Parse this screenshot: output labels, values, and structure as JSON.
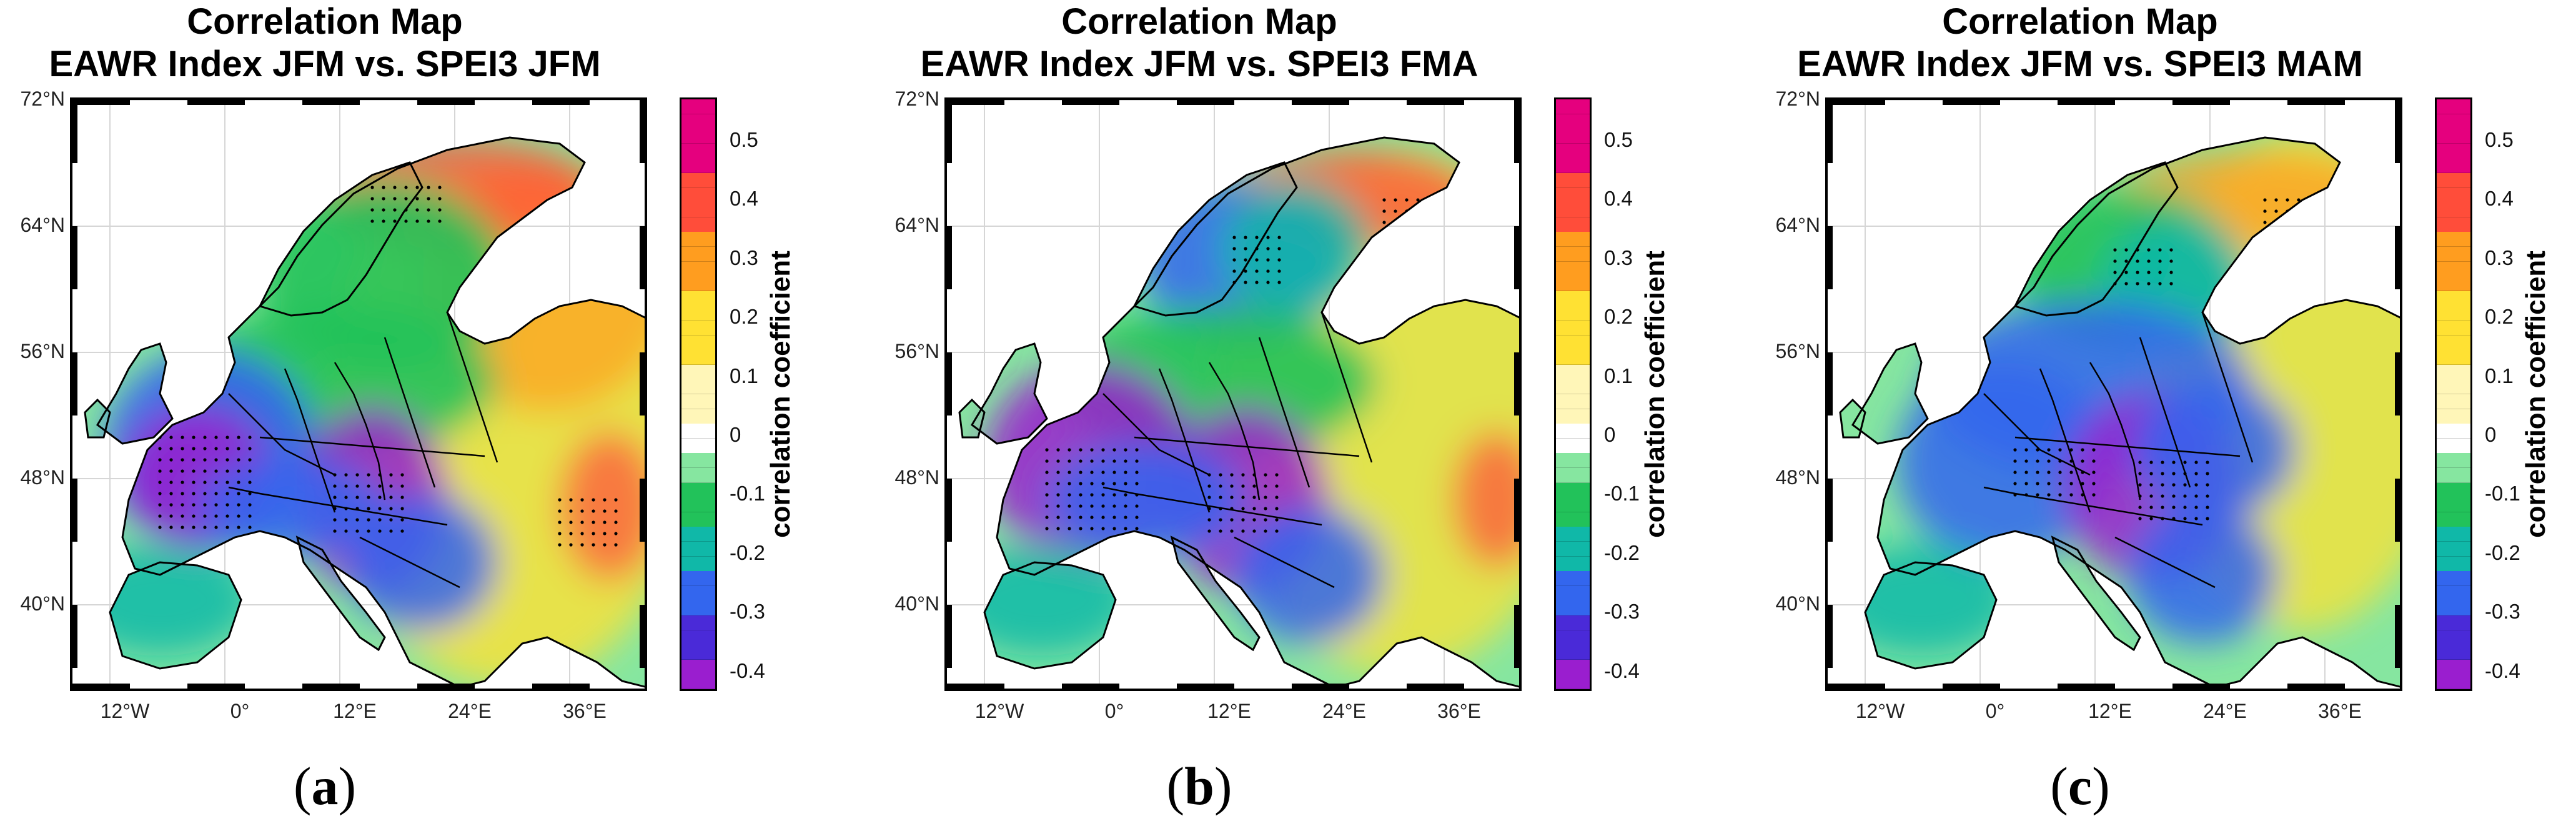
{
  "panels": [
    {
      "title_line1": "Correlation Map",
      "title_line2": "EAWR Index JFM vs. SPEI3 JFM",
      "caption_letter": "a"
    },
    {
      "title_line1": "Correlation Map",
      "title_line2": "EAWR Index JFM vs. SPEI3 FMA",
      "caption_letter": "b"
    },
    {
      "title_line1": "Correlation Map",
      "title_line2": "EAWR Index JFM vs. SPEI3 MAM",
      "caption_letter": "c"
    }
  ],
  "caption_paren_open": "(",
  "caption_paren_close": ")",
  "map_axes": {
    "lat_labels": [
      "72°N",
      "64°N",
      "56°N",
      "48°N",
      "40°N"
    ],
    "lon_labels": [
      "12°W",
      "0°",
      "12°E",
      "24°E",
      "36°E"
    ]
  },
  "colorbar": {
    "title": "correlation coefficient",
    "range": [
      -0.43,
      0.57
    ],
    "step": 0.025,
    "tick_labels": [
      "0.5",
      "0.4",
      "0.3",
      "0.2",
      "0.1",
      "0",
      "-0.1",
      "-0.2",
      "-0.3",
      "-0.4"
    ],
    "colors": {
      "magenta": "#e5007e",
      "red": "#ff4d3a",
      "orange": "#ff9d1f",
      "yellow": "#ffe133",
      "pale_yellow": "#fff6b8",
      "white": "#ffffff",
      "light_green": "#86e6a0",
      "green": "#22c25a",
      "teal": "#10b8a8",
      "blue": "#3366ee",
      "deep_blue": "#4a2ad8",
      "purple": "#9a1ecf"
    }
  }
}
